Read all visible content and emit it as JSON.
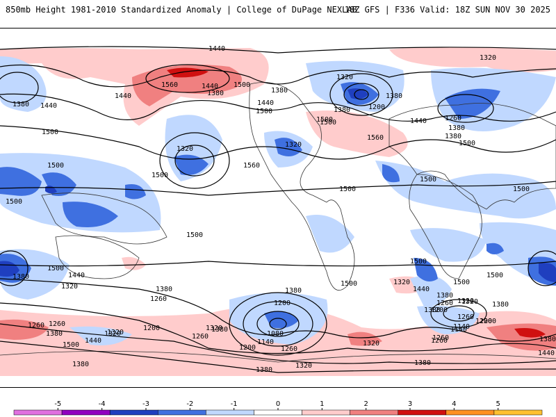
{
  "header": {
    "title": "850mb Height 1981-2010 Standardized Anomaly | College of DuPage NEXLAB",
    "run_info": "18Z GFS | F336 Valid: 18Z SUN NOV 30 2025"
  },
  "contour_labels": [
    "1440",
    "1320",
    "1380",
    "1440",
    "1380",
    "1500",
    "1560",
    "1440",
    "1380",
    "1500",
    "1320",
    "1500",
    "1440",
    "1380",
    "1440",
    "1500",
    "1380",
    "1320",
    "1200",
    "1380",
    "1260",
    "1440",
    "1380",
    "1500",
    "1560",
    "1500",
    "1320",
    "1500",
    "1500",
    "1560",
    "1500",
    "1500",
    "1500",
    "1500",
    "1500",
    "1500",
    "1500",
    "1500",
    "1440",
    "1320",
    "1380",
    "1260",
    "1380",
    "1500",
    "1200",
    "1380",
    "1200",
    "1080",
    "1140",
    "1200",
    "1260",
    "1380",
    "1320",
    "1260",
    "1320",
    "1260",
    "1200",
    "1140",
    "1320",
    "1380",
    "1260",
    "1320",
    "1380",
    "1380",
    "1500",
    "1320",
    "1440",
    "1380",
    "1200",
    "1380",
    "1320",
    "1380",
    "1500",
    "1260",
    "1380",
    "1320",
    "1440",
    "1380",
    "1440",
    "1260",
    "1320",
    "1140",
    "1260",
    "1200",
    "1260"
  ],
  "colorbar": {
    "ticks": [
      "-5",
      "-4",
      "-3",
      "-2",
      "-1",
      "0",
      "1",
      "2",
      "3",
      "4",
      "5"
    ],
    "colors": [
      "#e070e0",
      "#9000c0",
      "#1f3fbf",
      "#3f70e0",
      "#c0d8ff",
      "#ffffff",
      "#ffcccc",
      "#f08080",
      "#d01010",
      "#ff9020",
      "#ffc030"
    ]
  },
  "anomaly_colors": {
    "strong_negative": "#3060e0",
    "negative": "#c0d8ff",
    "positive": "#ffcccc",
    "strong_positive": "#f08080",
    "extreme_positive": "#d01010"
  }
}
